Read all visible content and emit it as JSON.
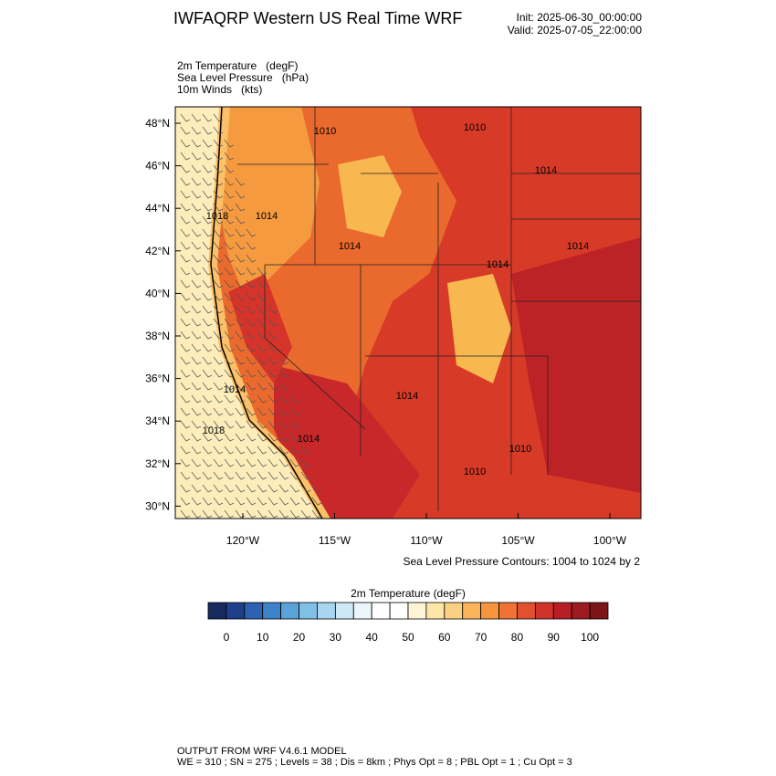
{
  "header": {
    "title": "IWFAQRP Western US Real Time WRF",
    "init": "Init: 2025-06-30_00:00:00",
    "valid": "Valid: 2025-07-05_22:00:00"
  },
  "fields": [
    "2m Temperature   (degF)",
    "Sea Level Pressure   (hPa)",
    "10m Winds   (kts)"
  ],
  "map": {
    "lat_labels": [
      "48°N",
      "46°N",
      "44°N",
      "42°N",
      "40°N",
      "38°N",
      "36°N",
      "34°N",
      "32°N",
      "30°N"
    ],
    "lon_labels": [
      "120°W",
      "115°W",
      "110°W",
      "105°W",
      "100°W"
    ],
    "contour_labels": [
      "1018",
      "1014",
      "1014",
      "1014",
      "1014",
      "1014",
      "1018",
      "1014",
      "1014",
      "1010",
      "1010",
      "1014",
      "1010",
      "1010"
    ],
    "contour_note": "Sea Level Pressure Contours: 1004 to 1024 by 2"
  },
  "colorbar": {
    "title": "2m Temperature  (degF)",
    "ticks": [
      0,
      10,
      20,
      30,
      40,
      50,
      60,
      70,
      80,
      90,
      100
    ],
    "colors": [
      "#172a5e",
      "#1f3f8a",
      "#2c62b0",
      "#3d82c8",
      "#5aa2d8",
      "#80bfe6",
      "#a8d6f0",
      "#cfe8f6",
      "#ecf6fb",
      "#ffffff",
      "#ffffff",
      "#fff4d6",
      "#fde6a8",
      "#fcd081",
      "#fbb45a",
      "#f7943e",
      "#f07334",
      "#e3502e",
      "#cf3228",
      "#b81f25",
      "#9c1a20",
      "#7d1418"
    ]
  },
  "footer": {
    "model": "OUTPUT FROM WRF V4.6.1 MODEL",
    "config": "WE = 310 ; SN = 275 ; Levels = 38 ; Dis = 8km ; Phys Opt = 8 ; PBL Opt = 1 ; Cu Opt = 3"
  }
}
